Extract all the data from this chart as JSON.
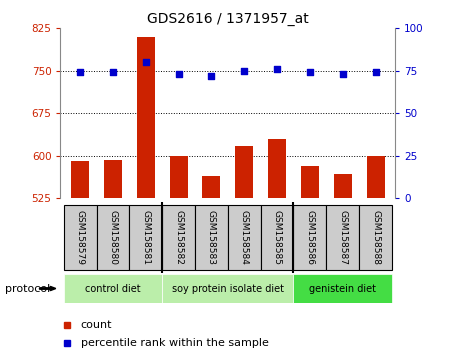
{
  "title": "GDS2616 / 1371957_at",
  "categories": [
    "GSM158579",
    "GSM158580",
    "GSM158581",
    "GSM158582",
    "GSM158583",
    "GSM158584",
    "GSM158585",
    "GSM158586",
    "GSM158587",
    "GSM158588"
  ],
  "counts": [
    590,
    593,
    810,
    600,
    565,
    618,
    630,
    582,
    568,
    600
  ],
  "percentile_ranks": [
    74,
    74,
    80,
    73,
    72,
    75,
    76,
    74,
    73,
    74
  ],
  "ymin": 525,
  "ymax": 825,
  "yticks": [
    525,
    600,
    675,
    750,
    825
  ],
  "y2min": 0,
  "y2max": 100,
  "y2ticks": [
    0,
    25,
    50,
    75,
    100
  ],
  "bar_color": "#cc2200",
  "dot_color": "#0000cc",
  "protocol_groups": [
    {
      "label": "control diet",
      "start": 0,
      "end": 2,
      "color": "#bbeeaa"
    },
    {
      "label": "soy protein isolate diet",
      "start": 3,
      "end": 6,
      "color": "#bbeeaa"
    },
    {
      "label": "genistein diet",
      "start": 7,
      "end": 9,
      "color": "#44dd44"
    }
  ],
  "legend_count_label": "count",
  "legend_percentile_label": "percentile rank within the sample",
  "protocol_label": "protocol",
  "grid_color": "#000000",
  "background_color": "#ffffff",
  "tick_label_color_left": "#cc2200",
  "tick_label_color_right": "#0000cc",
  "xtick_bg_color": "#cccccc"
}
